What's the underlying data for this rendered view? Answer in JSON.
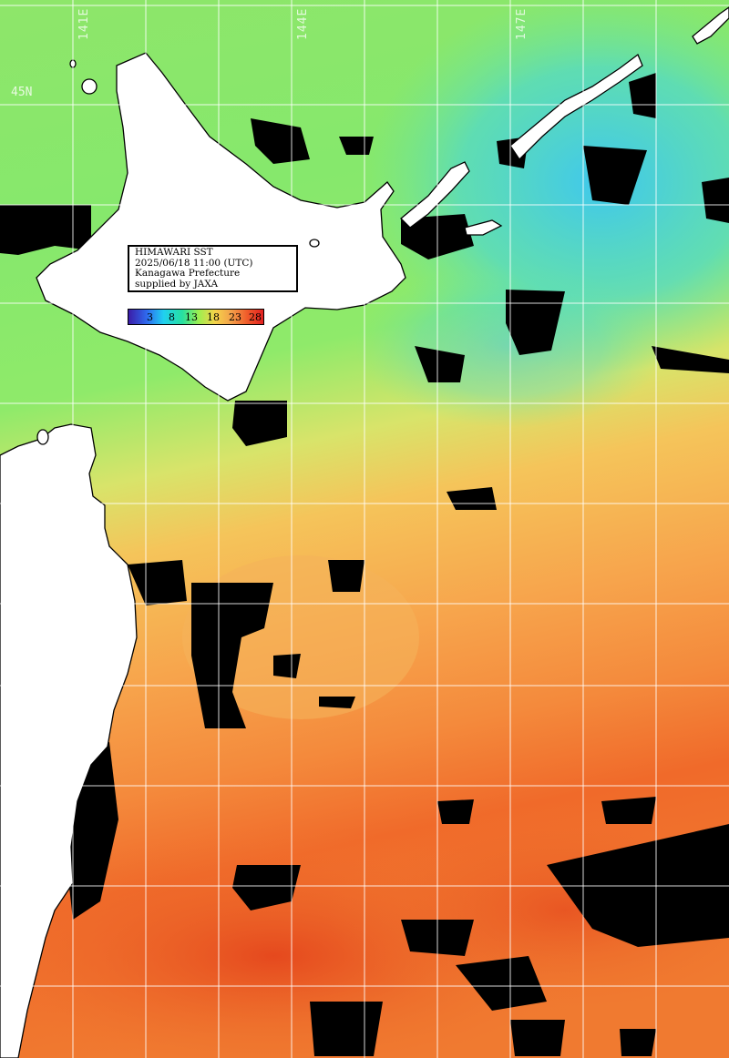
{
  "map": {
    "grid_longitudes": [
      "141E",
      "144E",
      "147E"
    ],
    "grid_latitude": "45N"
  },
  "info_box": {
    "line1": "HIMAWARI SST",
    "line2": "2025/06/18 11:00 (UTC)",
    "line3": "Kanagawa Prefecture",
    "line4": "supplied by JAXA"
  },
  "legend": {
    "ticks": [
      "3",
      "8",
      "13",
      "18",
      "23",
      "28"
    ],
    "colors": [
      "#3b1ca8",
      "#2e6cf0",
      "#20d0f0",
      "#27e0a0",
      "#9cef50",
      "#f4d44a",
      "#f3a14a",
      "#ef5b2a",
      "#e22020"
    ]
  }
}
